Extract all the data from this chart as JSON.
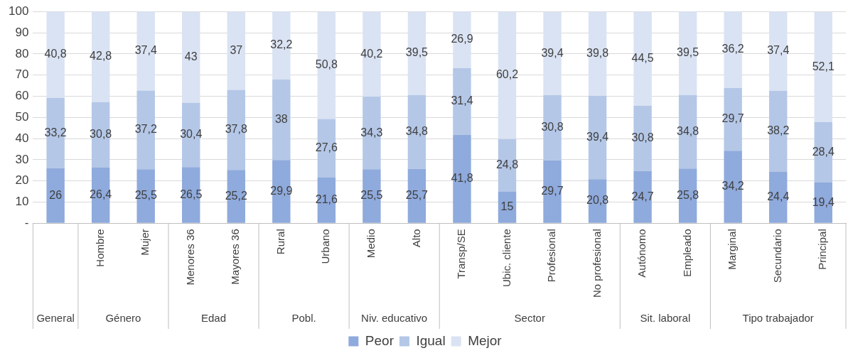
{
  "chart_data": {
    "type": "bar",
    "stacked": true,
    "categories": [
      null,
      "Hombre",
      "Mujer",
      "Menores 36",
      "Mayores 36",
      "Rural",
      "Urbano",
      "Medio",
      "Alto",
      "Transp/SE",
      "Ubic. cliente",
      "Profesional",
      "No profesional",
      "Autónomo",
      "Empleado",
      "Marginal",
      "Secundario",
      "Principal"
    ],
    "series": [
      {
        "name": "Peor",
        "color": "#8faadc",
        "values": [
          26,
          26.4,
          25.5,
          26.5,
          25.2,
          29.9,
          21.6,
          25.5,
          25.7,
          41.8,
          15,
          29.7,
          20.8,
          24.7,
          25.8,
          34.2,
          24.4,
          19.4
        ],
        "value_labels": [
          "26",
          "26,4",
          "25,5",
          "26,5",
          "25,2",
          "29,9",
          "21,6",
          "25,5",
          "25,7",
          "41,8",
          "15",
          "29,7",
          "20,8",
          "24,7",
          "25,8",
          "34,2",
          "24,4",
          "19,4"
        ]
      },
      {
        "name": "Igual",
        "color": "#b4c7e7",
        "values": [
          33.2,
          30.8,
          37.2,
          30.4,
          37.8,
          38,
          27.6,
          34.3,
          34.8,
          31.4,
          24.8,
          30.8,
          39.4,
          30.8,
          34.8,
          29.7,
          38.2,
          28.4
        ],
        "value_labels": [
          "33,2",
          "30,8",
          "37,2",
          "30,4",
          "37,8",
          "38",
          "27,6",
          "34,3",
          "34,8",
          "31,4",
          "24,8",
          "30,8",
          "39,4",
          "30,8",
          "34,8",
          "29,7",
          "38,2",
          "28,4"
        ]
      },
      {
        "name": "Mejor",
        "color": "#dae3f3",
        "values": [
          40.8,
          42.8,
          37.4,
          43,
          37,
          32.2,
          50.8,
          40.2,
          39.5,
          26.9,
          60.2,
          39.4,
          39.8,
          44.5,
          39.5,
          36.2,
          37.4,
          52.1
        ],
        "value_labels": [
          "40,8",
          "42,8",
          "37,4",
          "43",
          "37",
          "32,2",
          "50,8",
          "40,2",
          "39,5",
          "26,9",
          "60,2",
          "39,4",
          "39,8",
          "44,5",
          "39,5",
          "36,2",
          "37,4",
          "52,1"
        ]
      }
    ],
    "annotations": [
      "General",
      "Género",
      "Edad",
      "Pobl.",
      "Niv. educativo",
      "Sector",
      "Sit. laboral",
      "Tipo trabajador"
    ],
    "ylim": [
      0,
      100
    ],
    "yticks": [
      {
        "value": 0,
        "label": "-"
      },
      10,
      20,
      30,
      40,
      50,
      60,
      70,
      80,
      90,
      100
    ],
    "grid": "y",
    "legend": "bottom"
  }
}
